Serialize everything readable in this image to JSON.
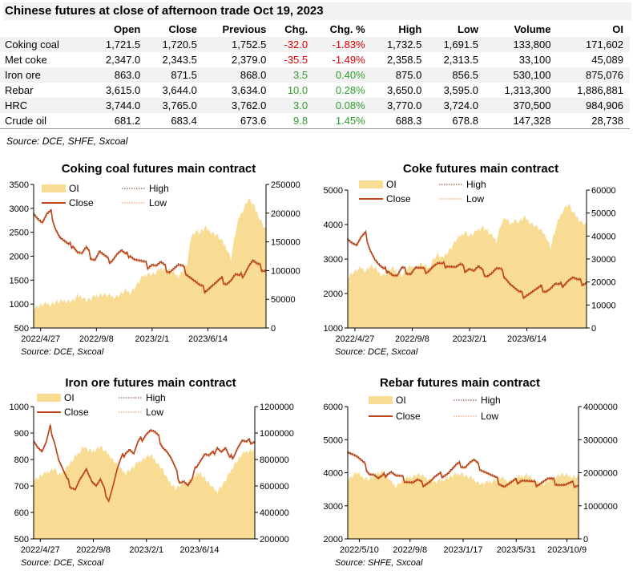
{
  "title": "Chinese futures at close of afternoon trade Oct 19, 2023",
  "table": {
    "headers": [
      "",
      "Open",
      "Close",
      "Previous",
      "Chg.",
      "Chg. %",
      "High",
      "Low",
      "Volume",
      "OI"
    ],
    "rows": [
      {
        "name": "Coking coal",
        "open": "1,721.5",
        "close": "1,720.5",
        "previous": "1,752.5",
        "chg": "-32.0",
        "chg_pct": "-1.83%",
        "high": "1,732.5",
        "low": "1,691.5",
        "volume": "133,800",
        "oi": "171,602",
        "dir": "neg"
      },
      {
        "name": "Met coke",
        "open": "2,347.0",
        "close": "2,343.5",
        "previous": "2,379.0",
        "chg": "-35.5",
        "chg_pct": "-1.49%",
        "high": "2,358.5",
        "low": "2,313.5",
        "volume": "33,100",
        "oi": "45,089",
        "dir": "neg"
      },
      {
        "name": "Iron ore",
        "open": "863.0",
        "close": "871.5",
        "previous": "868.0",
        "chg": "3.5",
        "chg_pct": "0.40%",
        "high": "875.0",
        "low": "856.5",
        "volume": "530,100",
        "oi": "875,076",
        "dir": "pos"
      },
      {
        "name": "Rebar",
        "open": "3,615.0",
        "close": "3,644.0",
        "previous": "3,634.0",
        "chg": "10.0",
        "chg_pct": "0.28%",
        "high": "3,650.0",
        "low": "3,595.0",
        "volume": "1,313,300",
        "oi": "1,886,881",
        "dir": "pos"
      },
      {
        "name": "HRC",
        "open": "3,744.0",
        "close": "3,765.0",
        "previous": "3,762.0",
        "chg": "3.0",
        "chg_pct": "0.08%",
        "high": "3,770.0",
        "low": "3,724.0",
        "volume": "370,500",
        "oi": "984,906",
        "dir": "pos"
      },
      {
        "name": "Crude oil",
        "open": "681.2",
        "close": "683.4",
        "previous": "673.6",
        "chg": "9.8",
        "chg_pct": "1.45%",
        "high": "688.3",
        "low": "678.8",
        "volume": "147,328",
        "oi": "28,738",
        "dir": "pos"
      }
    ],
    "source": "Source: DCE, SHFE, Sxcoal"
  },
  "colors": {
    "oi_fill": "#f9dc94",
    "close_line": "#c0451a",
    "high_line": "#7a3e1a",
    "low_line": "#f08a50",
    "negative": "#e00000",
    "positive": "#2e9e2e"
  },
  "chart_data": [
    {
      "type": "area",
      "title": "Coking coal futures main contract",
      "source": "Source:  DCE, Sxcoal",
      "legend": [
        "OI",
        "High",
        "Close",
        "Low"
      ],
      "legend_position": "top",
      "x_ticks": [
        "2022/4/27",
        "2022/9/8",
        "2023/2/1",
        "2023/6/14"
      ],
      "y_left": {
        "min": 500,
        "max": 3500,
        "ticks": [
          500,
          1000,
          1500,
          2000,
          2500,
          3000,
          3500
        ]
      },
      "y_right": {
        "min": 0,
        "max": 250000,
        "ticks": [
          0,
          50000,
          100000,
          150000,
          200000,
          250000
        ]
      },
      "close": [
        2950,
        2800,
        2700,
        2850,
        2900,
        2600,
        2400,
        2300,
        2200,
        2250,
        2100,
        2050,
        2150,
        2000,
        1950,
        2100,
        2000,
        1900,
        1950,
        2050,
        2100,
        2000,
        2050,
        1950,
        1900,
        1850,
        1800,
        1850,
        1800,
        1850,
        1750,
        1700,
        1750,
        1800,
        1750,
        1650,
        1550,
        1450,
        1350,
        1300,
        1350,
        1400,
        1450,
        1500,
        1450,
        1500,
        1600,
        1550,
        1650,
        1800,
        1900,
        1800,
        1750,
        1720
      ],
      "oi": [
        35000,
        38000,
        40000,
        42000,
        42000,
        45000,
        45000,
        48000,
        47000,
        47000,
        55000,
        55000,
        48000,
        50000,
        55000,
        58000,
        58000,
        56000,
        55000,
        55000,
        60000,
        65000,
        62000,
        70000,
        80000,
        90000,
        95000,
        93000,
        95000,
        105000,
        102000,
        100000,
        95000,
        90000,
        100000,
        110000,
        160000,
        170000,
        165000,
        175000,
        170000,
        165000,
        160000,
        150000,
        140000,
        120000,
        165000,
        195000,
        210000,
        225000,
        215000,
        200000,
        185000,
        170000
      ]
    },
    {
      "type": "area",
      "title": "Coke futures main contract",
      "source": "Source:  DCE, Sxcoal",
      "legend": [
        "OI",
        "High",
        "Close",
        "Low"
      ],
      "legend_position": "top",
      "x_ticks": [
        "2022/4/27",
        "2022/9/8",
        "2023/2/1",
        "2023/6/14"
      ],
      "y_left": {
        "min": 1000,
        "max": 5000,
        "ticks": [
          1000,
          2000,
          3000,
          4000,
          5000
        ]
      },
      "y_right": {
        "min": 0,
        "max": 60000,
        "ticks": [
          0,
          10000,
          20000,
          30000,
          40000,
          50000,
          60000
        ]
      },
      "close": [
        3650,
        3500,
        3400,
        3600,
        3700,
        3300,
        3000,
        2800,
        2650,
        2700,
        2550,
        2500,
        2700,
        2650,
        2600,
        2750,
        2700,
        2650,
        2700,
        2800,
        2850,
        2800,
        2850,
        2800,
        2750,
        2800,
        2700,
        2750,
        2650,
        2750,
        2600,
        2550,
        2600,
        2700,
        2650,
        2500,
        2300,
        2150,
        2000,
        1950,
        2000,
        2050,
        2100,
        2150,
        2100,
        2150,
        2250,
        2200,
        2300,
        2400,
        2450,
        2350,
        2320,
        2340
      ],
      "oi": [
        22000,
        24000,
        25000,
        26000,
        25000,
        27000,
        26000,
        24000,
        23000,
        25000,
        26000,
        24000,
        23000,
        25000,
        27000,
        26000,
        28000,
        27000,
        26000,
        30000,
        32000,
        30000,
        33000,
        35000,
        38000,
        40000,
        42000,
        40000,
        41000,
        43000,
        44000,
        42000,
        40000,
        38000,
        45000,
        48000,
        45000,
        47000,
        46000,
        48000,
        47000,
        45000,
        44000,
        42000,
        40000,
        35000,
        42000,
        48000,
        52000,
        54000,
        50000,
        48000,
        46000,
        45000
      ]
    },
    {
      "type": "area",
      "title": "Iron ore futures main contract",
      "source": "Source:  DCE, Sxcoal",
      "legend": [
        "OI",
        "High",
        "Close",
        "Low"
      ],
      "legend_position": "top",
      "x_ticks": [
        "2022/4/27",
        "2022/9/8",
        "2023/2/1",
        "2023/6/14"
      ],
      "y_left": {
        "min": 500,
        "max": 1000,
        "ticks": [
          500,
          600,
          700,
          800,
          900,
          1000
        ]
      },
      "y_right": {
        "min": 200000,
        "max": 1200000,
        "ticks": [
          200000,
          400000,
          600000,
          800000,
          1000000,
          1200000
        ]
      },
      "close": [
        880,
        850,
        830,
        860,
        920,
        870,
        800,
        760,
        720,
        700,
        690,
        720,
        740,
        760,
        720,
        700,
        720,
        680,
        650,
        700,
        760,
        800,
        830,
        840,
        820,
        860,
        880,
        900,
        910,
        900,
        880,
        850,
        830,
        800,
        760,
        720,
        720,
        700,
        720,
        780,
        800,
        820,
        810,
        820,
        850,
        830,
        840,
        800,
        820,
        850,
        870,
        860,
        870,
        871
      ],
      "oi": [
        650000,
        660000,
        680000,
        700000,
        720000,
        730000,
        680000,
        700000,
        750000,
        780000,
        820000,
        860000,
        900000,
        870000,
        860000,
        880000,
        900000,
        860000,
        840000,
        800000,
        760000,
        720000,
        700000,
        720000,
        740000,
        780000,
        800000,
        820000,
        830000,
        800000,
        760000,
        720000,
        650000,
        620000,
        580000,
        600000,
        620000,
        640000,
        660000,
        680000,
        700000,
        660000,
        620000,
        580000,
        560000,
        600000,
        640000,
        700000,
        760000,
        800000,
        840000,
        860000,
        870000,
        875000
      ]
    },
    {
      "type": "area",
      "title": "Rebar futures main contract",
      "source": "Source:  SHFE, Sxcoal",
      "legend": [
        "OI",
        "High",
        "Close",
        "Low"
      ],
      "legend_position": "top",
      "x_ticks": [
        "2022/5/10",
        "2022/9/8",
        "2023/1/17",
        "2023/5/31",
        "2023/10/9"
      ],
      "y_left": {
        "min": 2000,
        "max": 6000,
        "ticks": [
          2000,
          3000,
          4000,
          5000,
          6000
        ]
      },
      "y_right": {
        "min": 0,
        "max": 4000000,
        "ticks": [
          0,
          1000000,
          2000000,
          3000000,
          4000000
        ]
      },
      "close": [
        4700,
        4600,
        4500,
        4350,
        4200,
        4000,
        3950,
        3800,
        3850,
        4000,
        4050,
        3900,
        3850,
        3800,
        3750,
        3700,
        3750,
        3650,
        3700,
        3750,
        3850,
        3900,
        3950,
        4000,
        4100,
        4200,
        4250,
        4200,
        4300,
        4350,
        4200,
        4100,
        4000,
        3900,
        3800,
        3700,
        3600,
        3650,
        3700,
        3750,
        3800,
        3750,
        3700,
        3650,
        3700,
        3750,
        3800,
        3750,
        3700,
        3650,
        3620,
        3640,
        3650,
        3644
      ],
      "oi": [
        1800000,
        1900000,
        2000000,
        1900000,
        1850000,
        1800000,
        1900000,
        2000000,
        2050000,
        1900000,
        1700000,
        1600000,
        1700000,
        1800000,
        1850000,
        1900000,
        1950000,
        1900000,
        1850000,
        1800000,
        1700000,
        1750000,
        1800000,
        1850000,
        1900000,
        1950000,
        2000000,
        1900000,
        1850000,
        1800000,
        1700000,
        1650000,
        1700000,
        1750000,
        1800000,
        1850000,
        1800000,
        1750000,
        1800000,
        1850000,
        1900000,
        1950000,
        1850000,
        1750000,
        1700000,
        1650000,
        1750000,
        1850000,
        1900000,
        1950000,
        1920000,
        1900000,
        1890000,
        1886881
      ]
    }
  ]
}
